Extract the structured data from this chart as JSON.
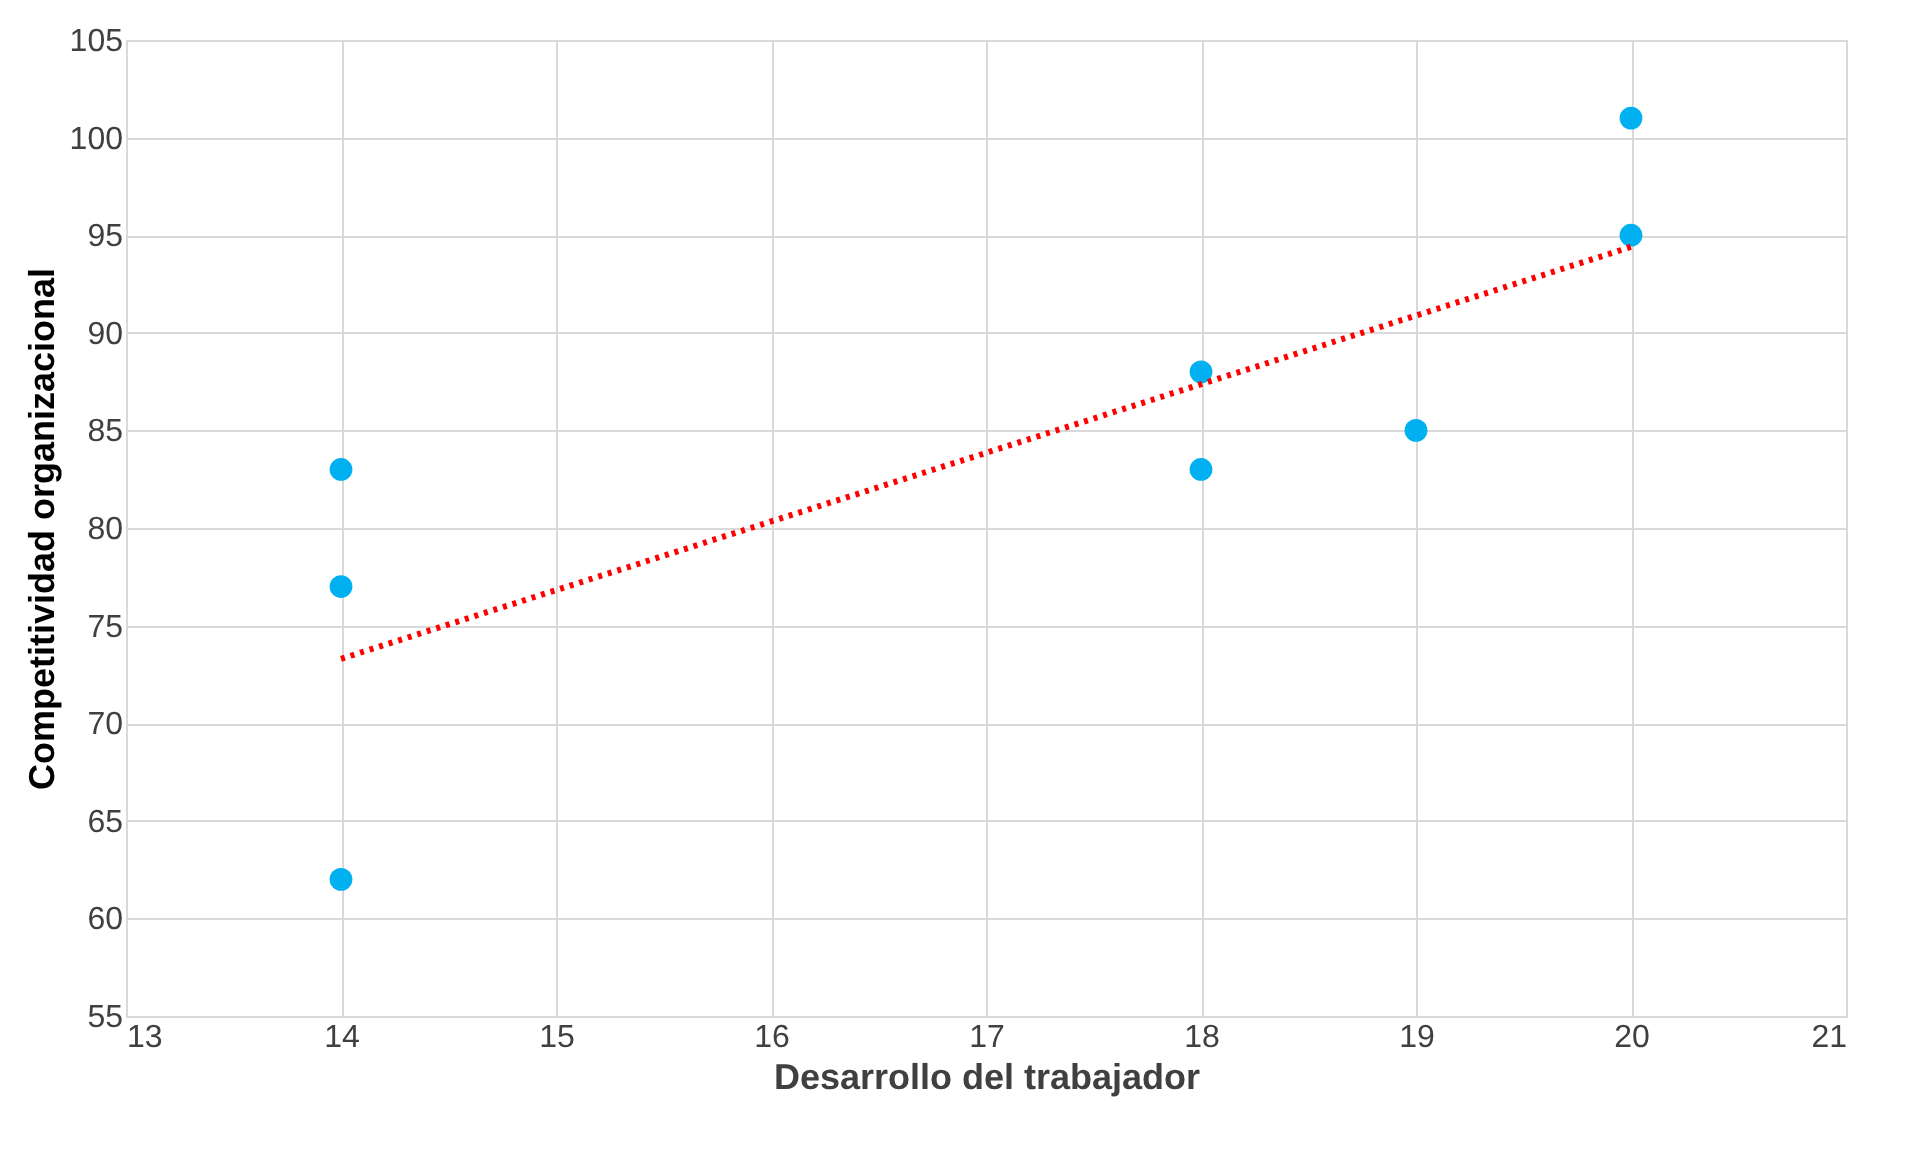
{
  "chart_data": {
    "type": "scatter",
    "xlabel": "Desarrollo del trabajador",
    "ylabel": "Competitividad organizacional",
    "series": [
      {
        "color": "#00b0f0",
        "x": [
          14,
          14,
          14,
          18,
          18,
          19,
          20,
          20
        ],
        "values": [
          83,
          77,
          62,
          88,
          83,
          85,
          101,
          95
        ],
        "marker": "circle"
      },
      {
        "type": "line",
        "color": "#ff0000",
        "x": [
          14,
          20
        ],
        "values": [
          73.3,
          94.4
        ],
        "line_style": "dotted"
      }
    ],
    "xlim": [
      13,
      21
    ],
    "xticks": [
      13,
      14,
      15,
      16,
      17,
      18,
      19,
      20,
      21
    ],
    "ylim": [
      55,
      105
    ],
    "yticks": [
      55,
      60,
      65,
      70,
      75,
      80,
      85,
      90,
      95,
      100,
      105
    ],
    "grid": true
  }
}
